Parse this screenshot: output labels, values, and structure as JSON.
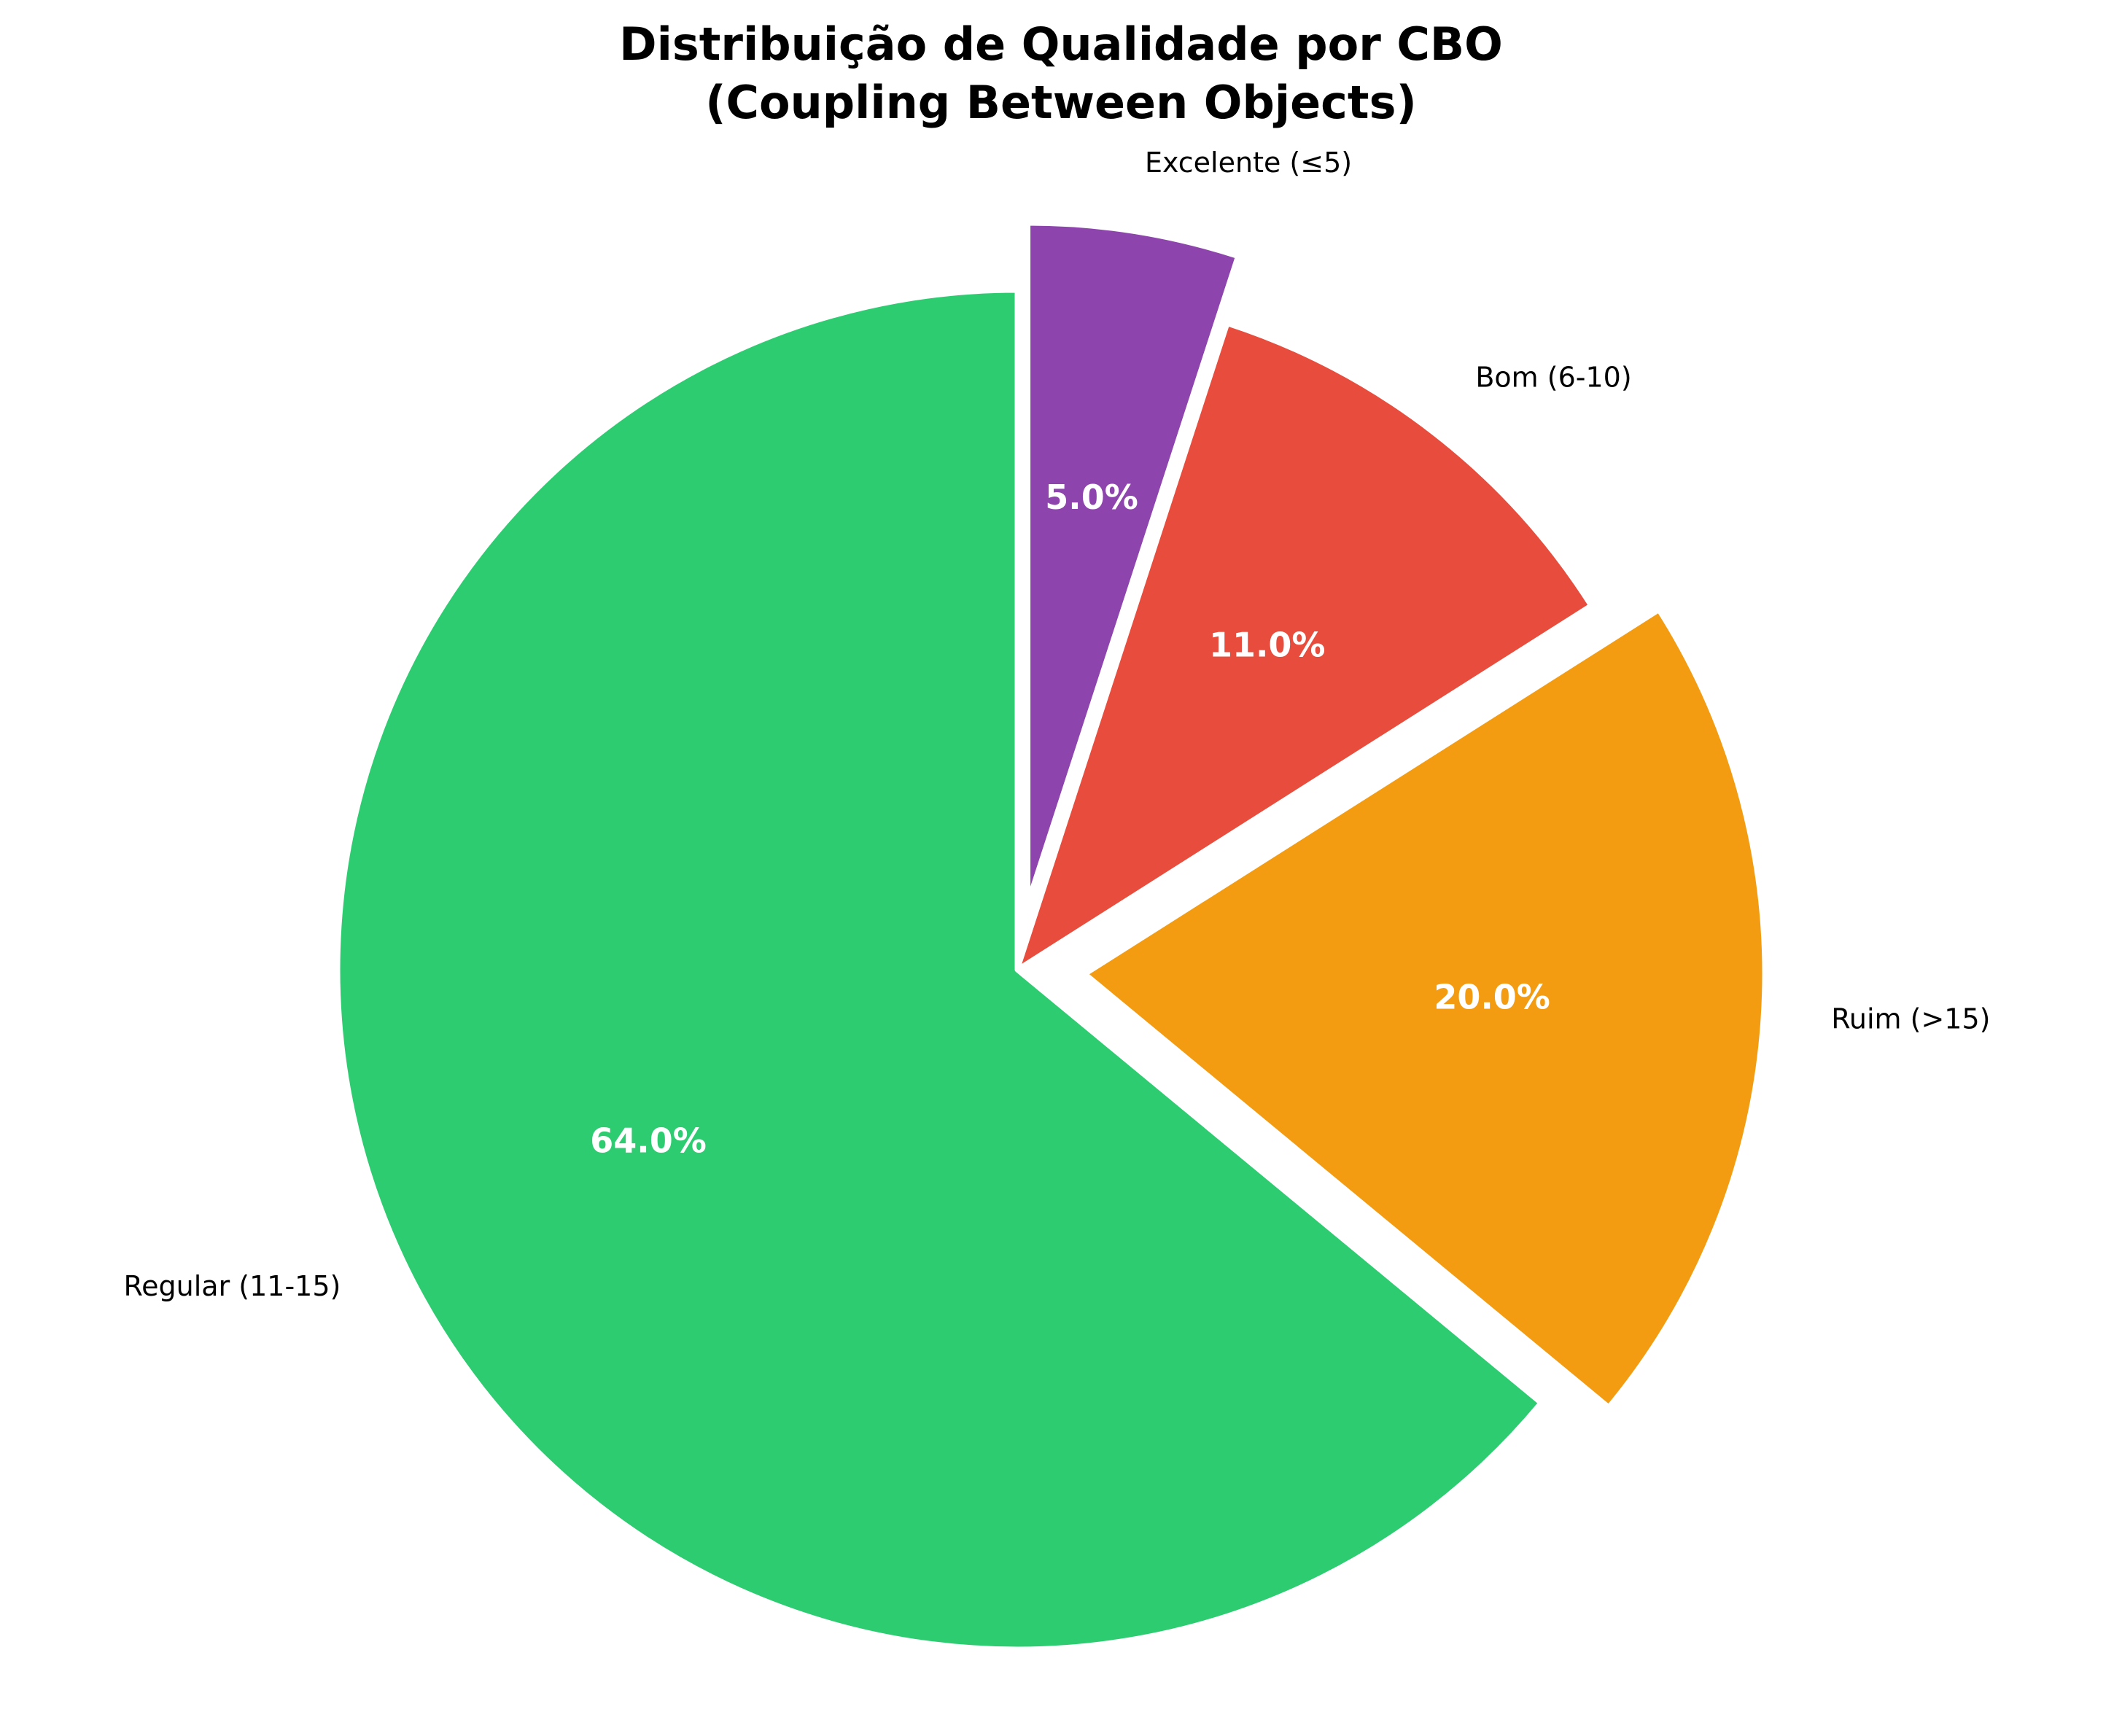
{
  "chart_data": {
    "type": "pie",
    "title": [
      "Distribuição de Qualidade por CBO",
      "(Coupling Between Objects)"
    ],
    "slices": [
      {
        "label": "Excelente (≤5)",
        "value": 5.0,
        "pct_label": "5.0%",
        "color": "#8e44ad",
        "exploded": true
      },
      {
        "label": "Bom (6-10)",
        "value": 11.0,
        "pct_label": "11.0%",
        "color": "#e74c3c",
        "exploded": false
      },
      {
        "label": "Ruim (>15)",
        "value": 20.0,
        "pct_label": "20.0%",
        "color": "#f39c12",
        "exploded": true
      },
      {
        "label": "Regular (11-15)",
        "value": 64.0,
        "pct_label": "64.0%",
        "color": "#2ecc71",
        "exploded": false
      }
    ],
    "start": "top",
    "direction": "clockwise",
    "legend": "none"
  }
}
